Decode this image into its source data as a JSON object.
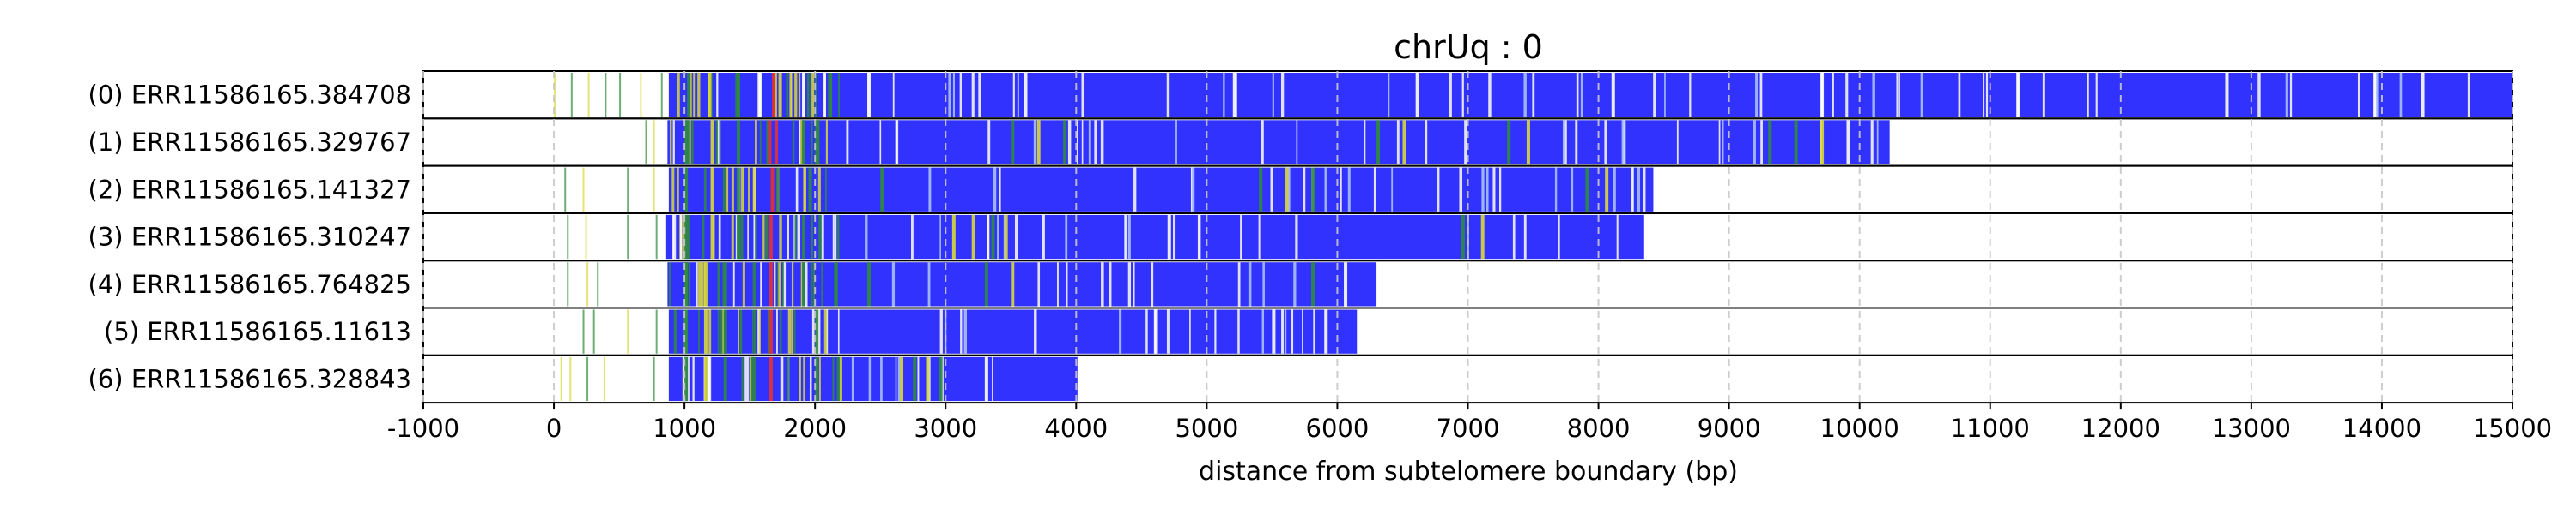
{
  "chart_data": {
    "type": "bar",
    "orientation": "horizontal",
    "title": "chrUq : 0",
    "xlabel": "distance from subtelomere boundary (bp)",
    "ylabel": "",
    "xlim": [
      -1000,
      15000
    ],
    "xticks": [
      -1000,
      0,
      1000,
      2000,
      3000,
      4000,
      5000,
      6000,
      7000,
      8000,
      9000,
      10000,
      11000,
      12000,
      13000,
      14000,
      15000
    ],
    "xtick_labels": [
      "-1000",
      "0",
      "1000",
      "2000",
      "3000",
      "4000",
      "5000",
      "6000",
      "7000",
      "8000",
      "9000",
      "10000",
      "11000",
      "12000",
      "13000",
      "14000",
      "15000"
    ],
    "grid": "x-dashed",
    "colors": {
      "base": "#3232ff",
      "green": "#2e8b3a",
      "yellow": "#d8d83a",
      "red": "#e83030",
      "white": "#ffffff",
      "light": "#b0c8ff",
      "grid": "#c8c8c8"
    },
    "reads": [
      {
        "label": "(0) ERR11586165.384708",
        "start": 880,
        "end": 15000,
        "features": [
          {
            "x": 0,
            "c": "yellow"
          },
          {
            "x": 130,
            "c": "green"
          },
          {
            "x": 260,
            "c": "yellow"
          },
          {
            "x": 390,
            "c": "green"
          },
          {
            "x": 500,
            "c": "green"
          },
          {
            "x": 660,
            "c": "yellow"
          },
          {
            "x": 820,
            "c": "green"
          },
          {
            "x": 1020,
            "c": "green"
          },
          {
            "x": 1180,
            "c": "yellow"
          },
          {
            "x": 1400,
            "c": "green"
          },
          {
            "x": 1560,
            "c": "white"
          },
          {
            "x": 1670,
            "c": "red"
          },
          {
            "x": 1720,
            "c": "yellow"
          },
          {
            "x": 1900,
            "c": "white"
          },
          {
            "x": 2100,
            "c": "green"
          },
          {
            "x": 2400,
            "c": "white"
          },
          {
            "x": 3600,
            "c": "white"
          },
          {
            "x": 5200,
            "c": "white"
          },
          {
            "x": 6600,
            "c": "white"
          },
          {
            "x": 8100,
            "c": "white"
          },
          {
            "x": 9700,
            "c": "white"
          },
          {
            "x": 11200,
            "c": "white"
          },
          {
            "x": 12800,
            "c": "white"
          },
          {
            "x": 14300,
            "c": "white"
          }
        ]
      },
      {
        "label": "(1) ERR11586165.329767",
        "start": 870,
        "end": 10230,
        "features": [
          {
            "x": 700,
            "c": "green"
          },
          {
            "x": 760,
            "c": "yellow"
          },
          {
            "x": 1000,
            "c": "green"
          },
          {
            "x": 1200,
            "c": "yellow"
          },
          {
            "x": 1400,
            "c": "green"
          },
          {
            "x": 1640,
            "c": "red"
          },
          {
            "x": 1690,
            "c": "red"
          },
          {
            "x": 2000,
            "c": "green"
          },
          {
            "x": 3500,
            "c": "green"
          },
          {
            "x": 3700,
            "c": "yellow"
          },
          {
            "x": 3900,
            "c": "green"
          },
          {
            "x": 6300,
            "c": "green"
          },
          {
            "x": 6500,
            "c": "yellow"
          },
          {
            "x": 7300,
            "c": "green"
          },
          {
            "x": 7450,
            "c": "yellow"
          },
          {
            "x": 9300,
            "c": "green"
          },
          {
            "x": 9500,
            "c": "green"
          },
          {
            "x": 9700,
            "c": "yellow"
          },
          {
            "x": 9900,
            "c": "white"
          }
        ]
      },
      {
        "label": "(2) ERR11586165.141327",
        "start": 880,
        "end": 8420,
        "features": [
          {
            "x": 80,
            "c": "green"
          },
          {
            "x": 220,
            "c": "yellow"
          },
          {
            "x": 560,
            "c": "green"
          },
          {
            "x": 760,
            "c": "yellow"
          },
          {
            "x": 1000,
            "c": "green"
          },
          {
            "x": 1200,
            "c": "yellow"
          },
          {
            "x": 1400,
            "c": "green"
          },
          {
            "x": 1660,
            "c": "red"
          },
          {
            "x": 1950,
            "c": "green"
          },
          {
            "x": 2500,
            "c": "green"
          },
          {
            "x": 5400,
            "c": "green"
          },
          {
            "x": 5600,
            "c": "yellow"
          },
          {
            "x": 5800,
            "c": "green"
          },
          {
            "x": 7900,
            "c": "green"
          },
          {
            "x": 8050,
            "c": "yellow"
          }
        ]
      },
      {
        "label": "(3) ERR11586165.310247",
        "start": 860,
        "end": 8350,
        "features": [
          {
            "x": 100,
            "c": "green"
          },
          {
            "x": 240,
            "c": "yellow"
          },
          {
            "x": 560,
            "c": "green"
          },
          {
            "x": 780,
            "c": "green"
          },
          {
            "x": 1000,
            "c": "green"
          },
          {
            "x": 1200,
            "c": "yellow"
          },
          {
            "x": 1400,
            "c": "green"
          },
          {
            "x": 1650,
            "c": "red"
          },
          {
            "x": 1900,
            "c": "green"
          },
          {
            "x": 3050,
            "c": "yellow"
          },
          {
            "x": 3200,
            "c": "yellow"
          },
          {
            "x": 3350,
            "c": "green"
          },
          {
            "x": 3450,
            "c": "yellow"
          },
          {
            "x": 4700,
            "c": "white"
          },
          {
            "x": 6950,
            "c": "green"
          },
          {
            "x": 7100,
            "c": "yellow"
          }
        ]
      },
      {
        "label": "(4) ERR11586165.764825",
        "start": 870,
        "end": 6300,
        "features": [
          {
            "x": 100,
            "c": "green"
          },
          {
            "x": 250,
            "c": "yellow"
          },
          {
            "x": 330,
            "c": "green"
          },
          {
            "x": 1000,
            "c": "green"
          },
          {
            "x": 1150,
            "c": "yellow"
          },
          {
            "x": 1300,
            "c": "green"
          },
          {
            "x": 1650,
            "c": "red"
          },
          {
            "x": 1900,
            "c": "green"
          },
          {
            "x": 2400,
            "c": "green"
          },
          {
            "x": 3300,
            "c": "green"
          },
          {
            "x": 3500,
            "c": "yellow"
          },
          {
            "x": 5800,
            "c": "green"
          },
          {
            "x": 6050,
            "c": "white"
          }
        ]
      },
      {
        "label": "(5) ERR11586165.11613",
        "start": 880,
        "end": 6150,
        "features": [
          {
            "x": 220,
            "c": "green"
          },
          {
            "x": 300,
            "c": "green"
          },
          {
            "x": 560,
            "c": "yellow"
          },
          {
            "x": 780,
            "c": "green"
          },
          {
            "x": 1000,
            "c": "green"
          },
          {
            "x": 1150,
            "c": "yellow"
          },
          {
            "x": 1300,
            "c": "green"
          },
          {
            "x": 1650,
            "c": "red"
          },
          {
            "x": 2000,
            "c": "green"
          },
          {
            "x": 4600,
            "c": "white"
          },
          {
            "x": 5500,
            "c": "white"
          },
          {
            "x": 5900,
            "c": "white"
          }
        ]
      },
      {
        "label": "(6) ERR11586165.328843",
        "start": 880,
        "end": 4010,
        "features": [
          {
            "x": 50,
            "c": "yellow"
          },
          {
            "x": 120,
            "c": "yellow"
          },
          {
            "x": 250,
            "c": "green"
          },
          {
            "x": 380,
            "c": "yellow"
          },
          {
            "x": 760,
            "c": "green"
          },
          {
            "x": 1000,
            "c": "green"
          },
          {
            "x": 1150,
            "c": "yellow"
          },
          {
            "x": 1300,
            "c": "green"
          },
          {
            "x": 1650,
            "c": "red"
          },
          {
            "x": 2000,
            "c": "green"
          },
          {
            "x": 2650,
            "c": "yellow"
          },
          {
            "x": 2750,
            "c": "green"
          },
          {
            "x": 2850,
            "c": "yellow"
          },
          {
            "x": 2950,
            "c": "green"
          },
          {
            "x": 3300,
            "c": "white"
          }
        ]
      }
    ]
  }
}
